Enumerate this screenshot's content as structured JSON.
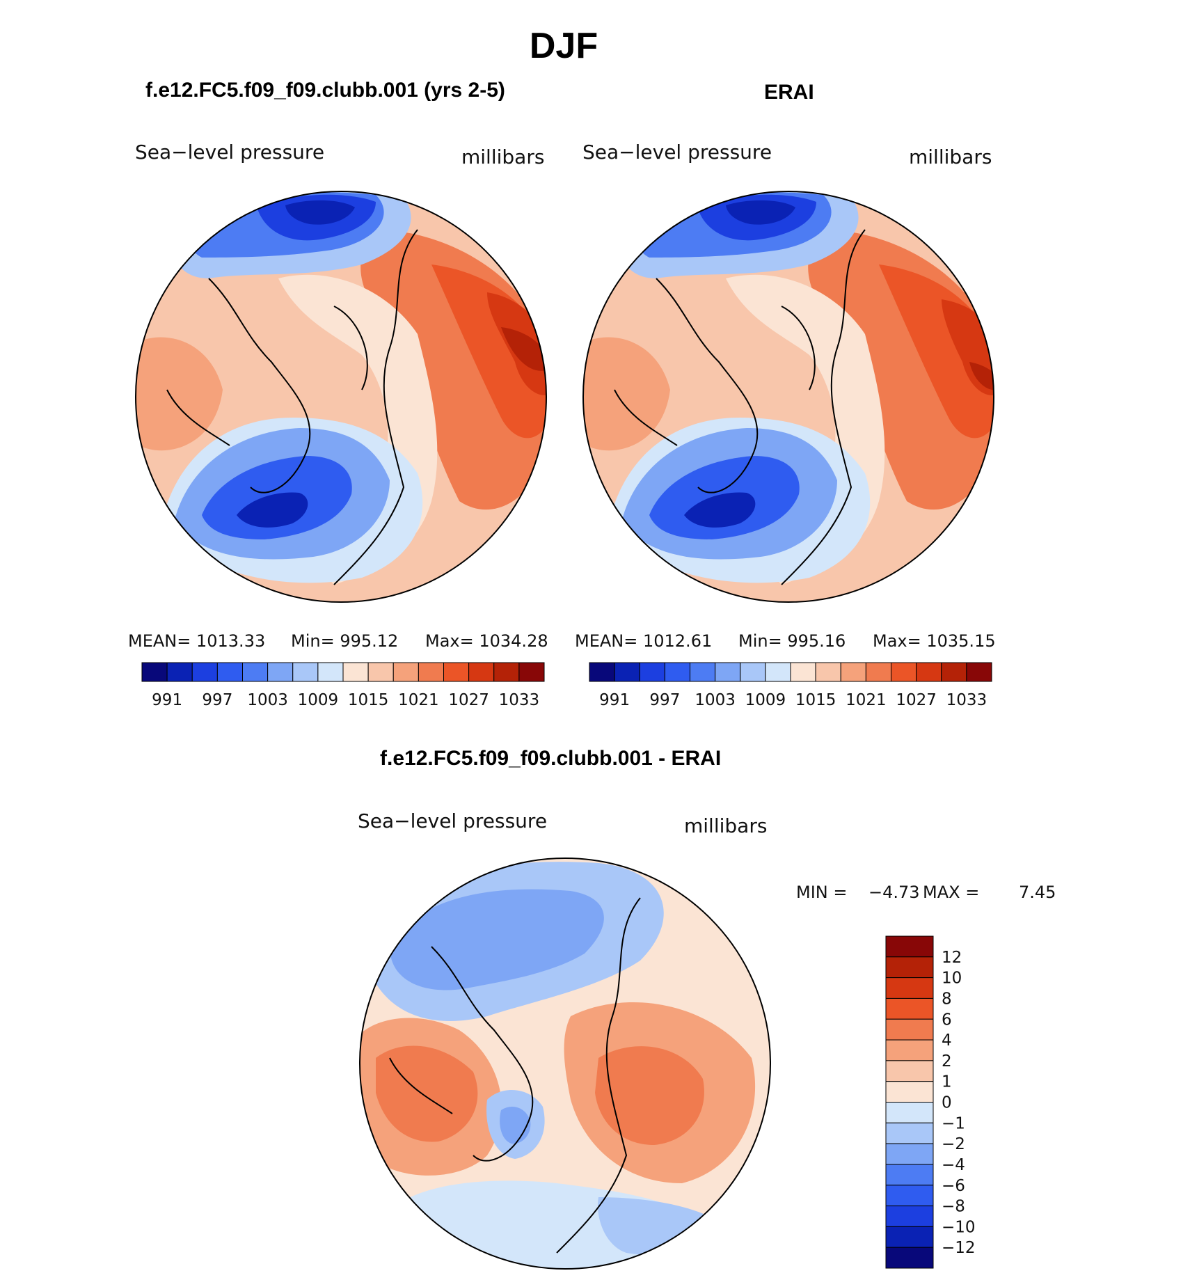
{
  "main_title": "DJF",
  "panels": {
    "model": {
      "title": "f.e12.FC5.f09_f09.clubb.001 (yrs 2-5)",
      "left_label": "Sea−level pressure",
      "right_label": "millibars",
      "stats": {
        "mean": "MEAN=  1013.33",
        "min": "Min=  995.12",
        "max": "Max=  1034.28"
      }
    },
    "obs": {
      "title": "ERAI",
      "left_label": "Sea−level pressure",
      "right_label": "millibars",
      "stats": {
        "mean": "MEAN=  1012.61",
        "min": "Min=  995.16",
        "max": "Max=  1035.15"
      }
    },
    "diff": {
      "title": "f.e12.FC5.f09_f09.clubb.001 - ERAI",
      "left_label": "Sea−level pressure",
      "right_label": "millibars",
      "stats": {
        "min_label": "MIN =",
        "min": "−4.73",
        "max_label": "MAX =",
        "max": "7.45"
      }
    }
  },
  "abs_colorbar": {
    "colors": [
      "#08087a",
      "#0a22b4",
      "#1c3fe0",
      "#2f5cf0",
      "#4d7cf3",
      "#7ea6f5",
      "#a9c7f8",
      "#d3e6fa",
      "#fbe4d4",
      "#f8c6ab",
      "#f5a27b",
      "#f07b4f",
      "#eb5527",
      "#d63812",
      "#b42207",
      "#880707"
    ],
    "labels": [
      "991",
      "997",
      "1003",
      "1009",
      "1015",
      "1021",
      "1027",
      "1033"
    ]
  },
  "diff_colorbar": {
    "colors": [
      "#880707",
      "#b42207",
      "#d63812",
      "#eb5527",
      "#f07b4f",
      "#f5a27b",
      "#f8c6ab",
      "#fbe4d4",
      "#d3e6fa",
      "#a9c7f8",
      "#7ea6f5",
      "#4d7cf3",
      "#2f5cf0",
      "#1c3fe0",
      "#0a22b4",
      "#08087a"
    ],
    "labels": [
      "12",
      "10",
      "8",
      "6",
      "4",
      "2",
      "1",
      "0",
      "−1",
      "−2",
      "−4",
      "−6",
      "−8",
      "−10",
      "−12"
    ]
  }
}
